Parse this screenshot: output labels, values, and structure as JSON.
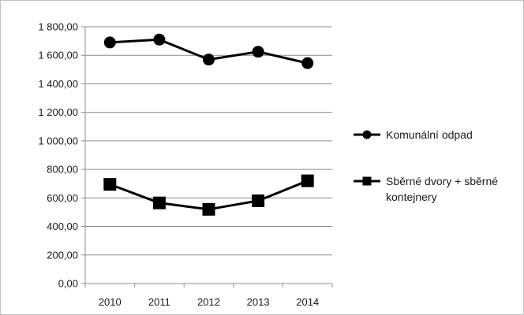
{
  "chart_data": {
    "type": "line",
    "title": "",
    "xlabel": "",
    "ylabel": "",
    "categories": [
      "2010",
      "2011",
      "2012",
      "2013",
      "2014"
    ],
    "ylim": [
      0,
      1800
    ],
    "yticks": [
      0,
      200,
      400,
      600,
      800,
      1000,
      1200,
      1400,
      1600,
      1800
    ],
    "ytick_labels": [
      "0,00",
      "200,00",
      "400,00",
      "600,00",
      "800,00",
      "1 000,00",
      "1 200,00",
      "1 400,00",
      "1 600,00",
      "1 800,00"
    ],
    "grid": "horizontal",
    "legend_position": "right",
    "series": [
      {
        "name": "Komunální odpad",
        "marker": "circle",
        "color": "#000000",
        "values": [
          1690,
          1710,
          1570,
          1625,
          1545
        ]
      },
      {
        "name_lines": [
          "Sběrné dvory + sběrné",
          "kontejnery"
        ],
        "marker": "square",
        "color": "#000000",
        "values": [
          695,
          565,
          520,
          580,
          720
        ]
      }
    ]
  }
}
